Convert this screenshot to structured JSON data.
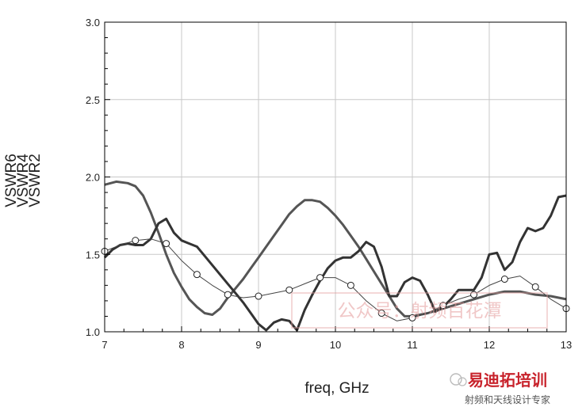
{
  "chart_data": {
    "type": "line",
    "xlabel": "freq, GHz",
    "ylabels": [
      "VSWR6",
      "VSWR4",
      "VSWR2"
    ],
    "xlim": [
      7,
      13
    ],
    "ylim": [
      1.0,
      3.0
    ],
    "x_ticks": [
      7,
      8,
      9,
      10,
      11,
      12,
      13
    ],
    "y_ticks": [
      1.0,
      1.5,
      2.0,
      2.5,
      3.0
    ],
    "x_tick_labels": [
      "7",
      "8",
      "9",
      "10",
      "11",
      "12",
      "13"
    ],
    "y_tick_labels": [
      "1.0",
      "1.5",
      "2.0",
      "2.5",
      "3.0"
    ],
    "grid": true,
    "series": [
      {
        "color": "#555555",
        "points": [
          [
            7.0,
            1.95
          ],
          [
            7.15,
            1.97
          ],
          [
            7.3,
            1.96
          ],
          [
            7.4,
            1.94
          ],
          [
            7.5,
            1.88
          ],
          [
            7.6,
            1.77
          ],
          [
            7.7,
            1.64
          ],
          [
            7.8,
            1.5
          ],
          [
            7.9,
            1.38
          ],
          [
            8.0,
            1.29
          ],
          [
            8.1,
            1.21
          ],
          [
            8.2,
            1.16
          ],
          [
            8.3,
            1.12
          ],
          [
            8.4,
            1.11
          ],
          [
            8.5,
            1.15
          ],
          [
            8.6,
            1.22
          ],
          [
            8.7,
            1.28
          ],
          [
            8.8,
            1.34
          ],
          [
            8.9,
            1.41
          ],
          [
            9.0,
            1.48
          ],
          [
            9.1,
            1.55
          ],
          [
            9.2,
            1.62
          ],
          [
            9.3,
            1.69
          ],
          [
            9.4,
            1.76
          ],
          [
            9.5,
            1.81
          ],
          [
            9.6,
            1.85
          ],
          [
            9.7,
            1.85
          ],
          [
            9.8,
            1.84
          ],
          [
            9.9,
            1.8
          ],
          [
            10.0,
            1.75
          ],
          [
            10.1,
            1.69
          ],
          [
            10.2,
            1.62
          ],
          [
            10.3,
            1.55
          ],
          [
            10.4,
            1.47
          ],
          [
            10.5,
            1.39
          ],
          [
            10.6,
            1.31
          ],
          [
            10.7,
            1.23
          ],
          [
            10.8,
            1.15
          ],
          [
            10.9,
            1.1
          ],
          [
            11.0,
            1.1
          ],
          [
            11.2,
            1.12
          ],
          [
            11.4,
            1.15
          ],
          [
            11.6,
            1.18
          ],
          [
            11.8,
            1.21
          ],
          [
            12.0,
            1.24
          ],
          [
            12.2,
            1.26
          ],
          [
            12.4,
            1.26
          ],
          [
            12.6,
            1.24
          ],
          [
            12.8,
            1.23
          ],
          [
            13.0,
            1.21
          ]
        ]
      },
      {
        "color": "#333333",
        "points": [
          [
            7.0,
            1.48
          ],
          [
            7.1,
            1.53
          ],
          [
            7.2,
            1.56
          ],
          [
            7.3,
            1.57
          ],
          [
            7.4,
            1.56
          ],
          [
            7.5,
            1.56
          ],
          [
            7.6,
            1.6
          ],
          [
            7.7,
            1.7
          ],
          [
            7.8,
            1.73
          ],
          [
            7.9,
            1.64
          ],
          [
            8.0,
            1.59
          ],
          [
            8.1,
            1.57
          ],
          [
            8.2,
            1.55
          ],
          [
            8.3,
            1.49
          ],
          [
            8.4,
            1.43
          ],
          [
            8.5,
            1.37
          ],
          [
            8.6,
            1.31
          ],
          [
            8.7,
            1.25
          ],
          [
            8.8,
            1.19
          ],
          [
            8.9,
            1.12
          ],
          [
            9.0,
            1.05
          ],
          [
            9.1,
            1.01
          ],
          [
            9.2,
            1.06
          ],
          [
            9.3,
            1.08
          ],
          [
            9.4,
            1.07
          ],
          [
            9.5,
            1.01
          ],
          [
            9.6,
            1.14
          ],
          [
            9.7,
            1.24
          ],
          [
            9.8,
            1.33
          ],
          [
            9.9,
            1.41
          ],
          [
            10.0,
            1.46
          ],
          [
            10.1,
            1.48
          ],
          [
            10.2,
            1.48
          ],
          [
            10.3,
            1.52
          ],
          [
            10.4,
            1.58
          ],
          [
            10.5,
            1.55
          ],
          [
            10.6,
            1.42
          ],
          [
            10.7,
            1.23
          ],
          [
            10.8,
            1.23
          ],
          [
            10.9,
            1.32
          ],
          [
            11.0,
            1.35
          ],
          [
            11.1,
            1.33
          ],
          [
            11.2,
            1.24
          ],
          [
            11.3,
            1.13
          ],
          [
            11.4,
            1.16
          ],
          [
            11.5,
            1.21
          ],
          [
            11.6,
            1.27
          ],
          [
            11.8,
            1.27
          ],
          [
            11.9,
            1.35
          ],
          [
            12.0,
            1.5
          ],
          [
            12.1,
            1.51
          ],
          [
            12.2,
            1.4
          ],
          [
            12.3,
            1.45
          ],
          [
            12.4,
            1.58
          ],
          [
            12.5,
            1.67
          ],
          [
            12.6,
            1.65
          ],
          [
            12.7,
            1.67
          ],
          [
            12.8,
            1.75
          ],
          [
            12.9,
            1.87
          ],
          [
            13.0,
            1.88
          ]
        ]
      },
      {
        "color": "#444444",
        "points": [
          [
            7.0,
            1.52
          ],
          [
            7.2,
            1.56
          ],
          [
            7.4,
            1.59
          ],
          [
            7.6,
            1.6
          ],
          [
            7.8,
            1.57
          ],
          [
            8.0,
            1.46
          ],
          [
            8.2,
            1.37
          ],
          [
            8.4,
            1.3
          ],
          [
            8.6,
            1.24
          ],
          [
            8.8,
            1.22
          ],
          [
            9.0,
            1.23
          ],
          [
            9.2,
            1.25
          ],
          [
            9.4,
            1.27
          ],
          [
            9.6,
            1.31
          ],
          [
            9.8,
            1.35
          ],
          [
            10.0,
            1.35
          ],
          [
            10.2,
            1.3
          ],
          [
            10.4,
            1.2
          ],
          [
            10.6,
            1.12
          ],
          [
            10.8,
            1.07
          ],
          [
            11.0,
            1.09
          ],
          [
            11.2,
            1.12
          ],
          [
            11.4,
            1.17
          ],
          [
            11.6,
            1.21
          ],
          [
            11.8,
            1.24
          ],
          [
            12.0,
            1.3
          ],
          [
            12.2,
            1.34
          ],
          [
            12.4,
            1.36
          ],
          [
            12.6,
            1.29
          ],
          [
            12.8,
            1.21
          ],
          [
            13.0,
            1.15
          ]
        ],
        "markers_at": [
          7.0,
          7.4,
          7.8,
          8.2,
          8.6,
          9.0,
          9.4,
          9.8,
          10.2,
          10.6,
          11.0,
          11.4,
          11.8,
          12.2,
          12.6,
          13.0
        ]
      }
    ]
  },
  "watermark": {
    "text": "公众号：射频百花潭",
    "badge_title": "易迪拓培训",
    "badge_subtitle": "射频和天线设计专家"
  }
}
